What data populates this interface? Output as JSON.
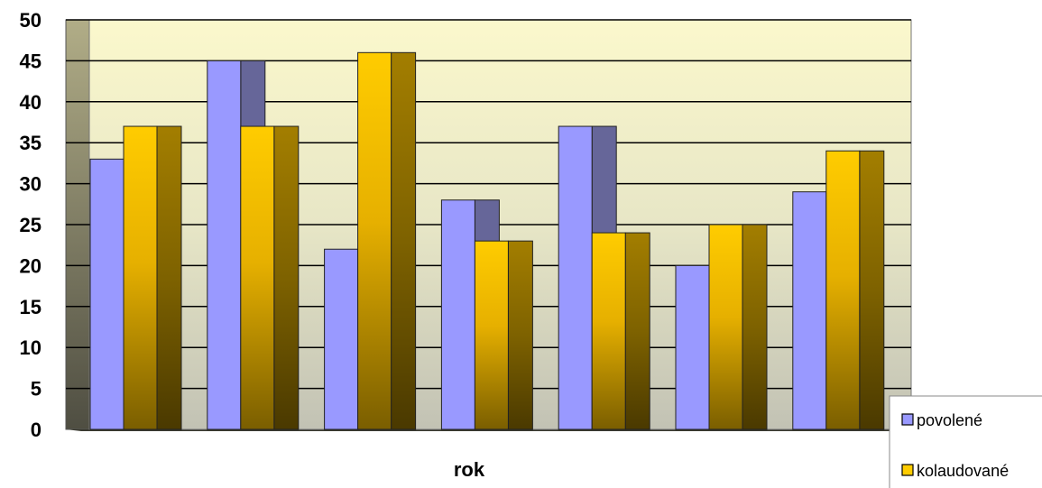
{
  "chart_data": {
    "type": "bar",
    "title": "",
    "xlabel": "rok",
    "ylabel": "",
    "ylim": [
      0,
      50
    ],
    "yticks": [
      0,
      5,
      10,
      15,
      20,
      25,
      30,
      35,
      40,
      45,
      50
    ],
    "categories": [
      "",
      "",
      "",
      "",
      "",
      "",
      ""
    ],
    "series": [
      {
        "name": "povolené",
        "values": [
          33,
          45,
          22,
          28,
          37,
          20,
          29
        ],
        "color": "#9999ff",
        "side_color": "#666699"
      },
      {
        "name": "kolaudované",
        "values": [
          37,
          37,
          46,
          23,
          24,
          25,
          34
        ],
        "color": "#ffcc00",
        "side_color": "#997a00"
      }
    ],
    "grid": true,
    "legend_position": "bottom-right",
    "style": "3d-clustered-column"
  }
}
